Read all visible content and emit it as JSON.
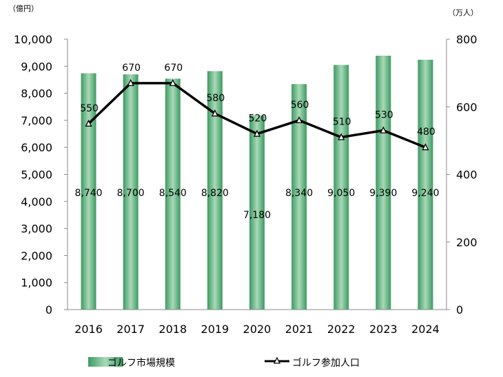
{
  "chart_data": {
    "type": "bar+line",
    "categories": [
      "2016",
      "2017",
      "2018",
      "2019",
      "2020",
      "2021",
      "2022",
      "2023",
      "2024"
    ],
    "series": [
      {
        "name": "ゴルフ市場規模",
        "type": "bar",
        "axis": "left",
        "values": [
          8740,
          8700,
          8540,
          8820,
          7180,
          8340,
          9050,
          9390,
          9240
        ],
        "labels": [
          "8,740",
          "8,700",
          "8,540",
          "8,820",
          "7,180",
          "8,340",
          "9,050",
          "9,390",
          "9,240"
        ],
        "color": "#4aa56e"
      },
      {
        "name": "ゴルフ参加人口",
        "type": "line",
        "axis": "right",
        "values": [
          550,
          670,
          670,
          580,
          520,
          560,
          510,
          530,
          480
        ],
        "labels": [
          "550",
          "670",
          "670",
          "580",
          "520",
          "560",
          "510",
          "530",
          "480"
        ],
        "color": "#000000"
      }
    ],
    "left_axis": {
      "unit": "（億円）",
      "ylim": [
        0,
        10000
      ],
      "ticks": [
        0,
        1000,
        2000,
        3000,
        4000,
        5000,
        6000,
        7000,
        8000,
        9000,
        10000
      ],
      "tick_labels": [
        "0",
        "1,000",
        "2,000",
        "3,000",
        "4,000",
        "5,000",
        "6,000",
        "7,000",
        "8,000",
        "9,000",
        "10,000"
      ]
    },
    "right_axis": {
      "unit": "（万人）",
      "ylim": [
        0,
        800
      ],
      "ticks": [
        0,
        200,
        400,
        600,
        800
      ],
      "tick_labels": [
        "0",
        "200",
        "400",
        "600",
        "800"
      ]
    },
    "grid": false,
    "legend": {
      "placement": "bottom",
      "entries": [
        "ゴルフ市場規模",
        "ゴルフ参加人口"
      ]
    }
  }
}
